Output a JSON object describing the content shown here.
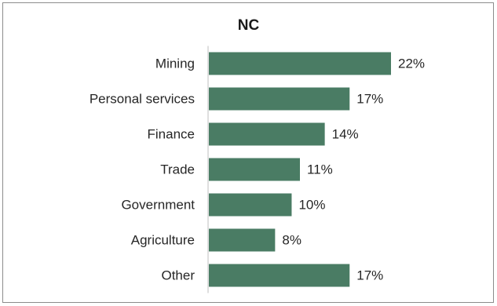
{
  "chart_data": {
    "type": "bar",
    "orientation": "horizontal",
    "title": "NC",
    "categories": [
      "Mining",
      "Personal services",
      "Finance",
      "Trade",
      "Government",
      "Agriculture",
      "Other"
    ],
    "values": [
      22,
      17,
      14,
      11,
      10,
      8,
      17
    ],
    "value_labels": [
      "22%",
      "17%",
      "14%",
      "11%",
      "10%",
      "8%",
      "17%"
    ],
    "xlabel": "",
    "ylabel": "",
    "xlim": [
      0,
      22
    ],
    "grid": false,
    "legend": "none",
    "bar_color": "#4a7c64",
    "axis_color": "#bfbfbf"
  }
}
